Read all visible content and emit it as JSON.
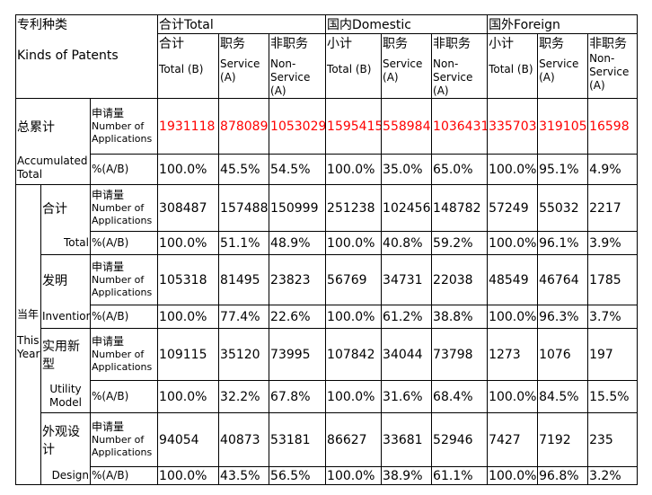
{
  "header": {
    "patent_type_zh": "专利种类",
    "patent_type_en": "Kinds of Patents",
    "groups": [
      {
        "label": "合计Total"
      },
      {
        "label": "国内Domestic"
      },
      {
        "label": "国外Foreign"
      }
    ],
    "subcols": [
      {
        "zh": "合计",
        "en": "Total (B)"
      },
      {
        "zh": "职务",
        "en": "Service (A)"
      },
      {
        "zh": "非职务",
        "en": "Non-Service (A)"
      },
      {
        "zh": "小计",
        "en": "Total (B)"
      },
      {
        "zh": "职务",
        "en": "Service (A)"
      },
      {
        "zh": "非职务",
        "en": "Non-Service (A)"
      },
      {
        "zh": "小计",
        "en": "Total (B)"
      },
      {
        "zh": "职务",
        "en": "Service (A)"
      },
      {
        "zh": "非职务",
        "en": "Non-Service (A)"
      }
    ]
  },
  "labels": {
    "num_apps_zh": "申请量",
    "num_apps_en": "Number of Applications",
    "pct": "%(A/B)",
    "accum_zh": "总累计",
    "accum_en": "Accumulated Total",
    "year_zh": "当年",
    "year_en": "This Year"
  },
  "accumulated": {
    "apps": [
      "1931118",
      "878089",
      "1053029",
      "1595415",
      "558984",
      "1036431",
      "335703",
      "319105",
      "16598"
    ],
    "pct": [
      "100.0%",
      "45.5%",
      "54.5%",
      "100.0%",
      "35.0%",
      "65.0%",
      "100.0%",
      "95.1%",
      "4.9%"
    ]
  },
  "this_year": [
    {
      "zh": "合计",
      "en": "Total",
      "apps": [
        "308487",
        "157488",
        "150999",
        "251238",
        "102456",
        "148782",
        "57249",
        "55032",
        "2217"
      ],
      "pct": [
        "100.0%",
        "51.1%",
        "48.9%",
        "100.0%",
        "40.8%",
        "59.2%",
        "100.0%",
        "96.1%",
        "3.9%"
      ]
    },
    {
      "zh": "发明",
      "en": "Invention",
      "apps": [
        "105318",
        "81495",
        "23823",
        "56769",
        "34731",
        "22038",
        "48549",
        "46764",
        "1785"
      ],
      "pct": [
        "100.0%",
        "77.4%",
        "22.6%",
        "100.0%",
        "61.2%",
        "38.8%",
        "100.0%",
        "96.3%",
        "3.7%"
      ]
    },
    {
      "zh": "实用新型",
      "en": "Utility Model",
      "apps": [
        "109115",
        "35120",
        "73995",
        "107842",
        "34044",
        "73798",
        "1273",
        "1076",
        "197"
      ],
      "pct": [
        "100.0%",
        "32.2%",
        "67.8%",
        "100.0%",
        "31.6%",
        "68.4%",
        "100.0%",
        "84.5%",
        "15.5%"
      ]
    },
    {
      "zh": "外观设计",
      "en": "Design",
      "apps": [
        "94054",
        "40873",
        "53181",
        "86627",
        "33681",
        "52946",
        "7427",
        "7192",
        "235"
      ],
      "pct": [
        "100.0%",
        "43.5%",
        "56.5%",
        "100.0%",
        "38.9%",
        "61.1%",
        "100.0%",
        "96.8%",
        "3.2%"
      ]
    }
  ],
  "colors": {
    "highlight": "#ff0000",
    "border": "#000000"
  }
}
